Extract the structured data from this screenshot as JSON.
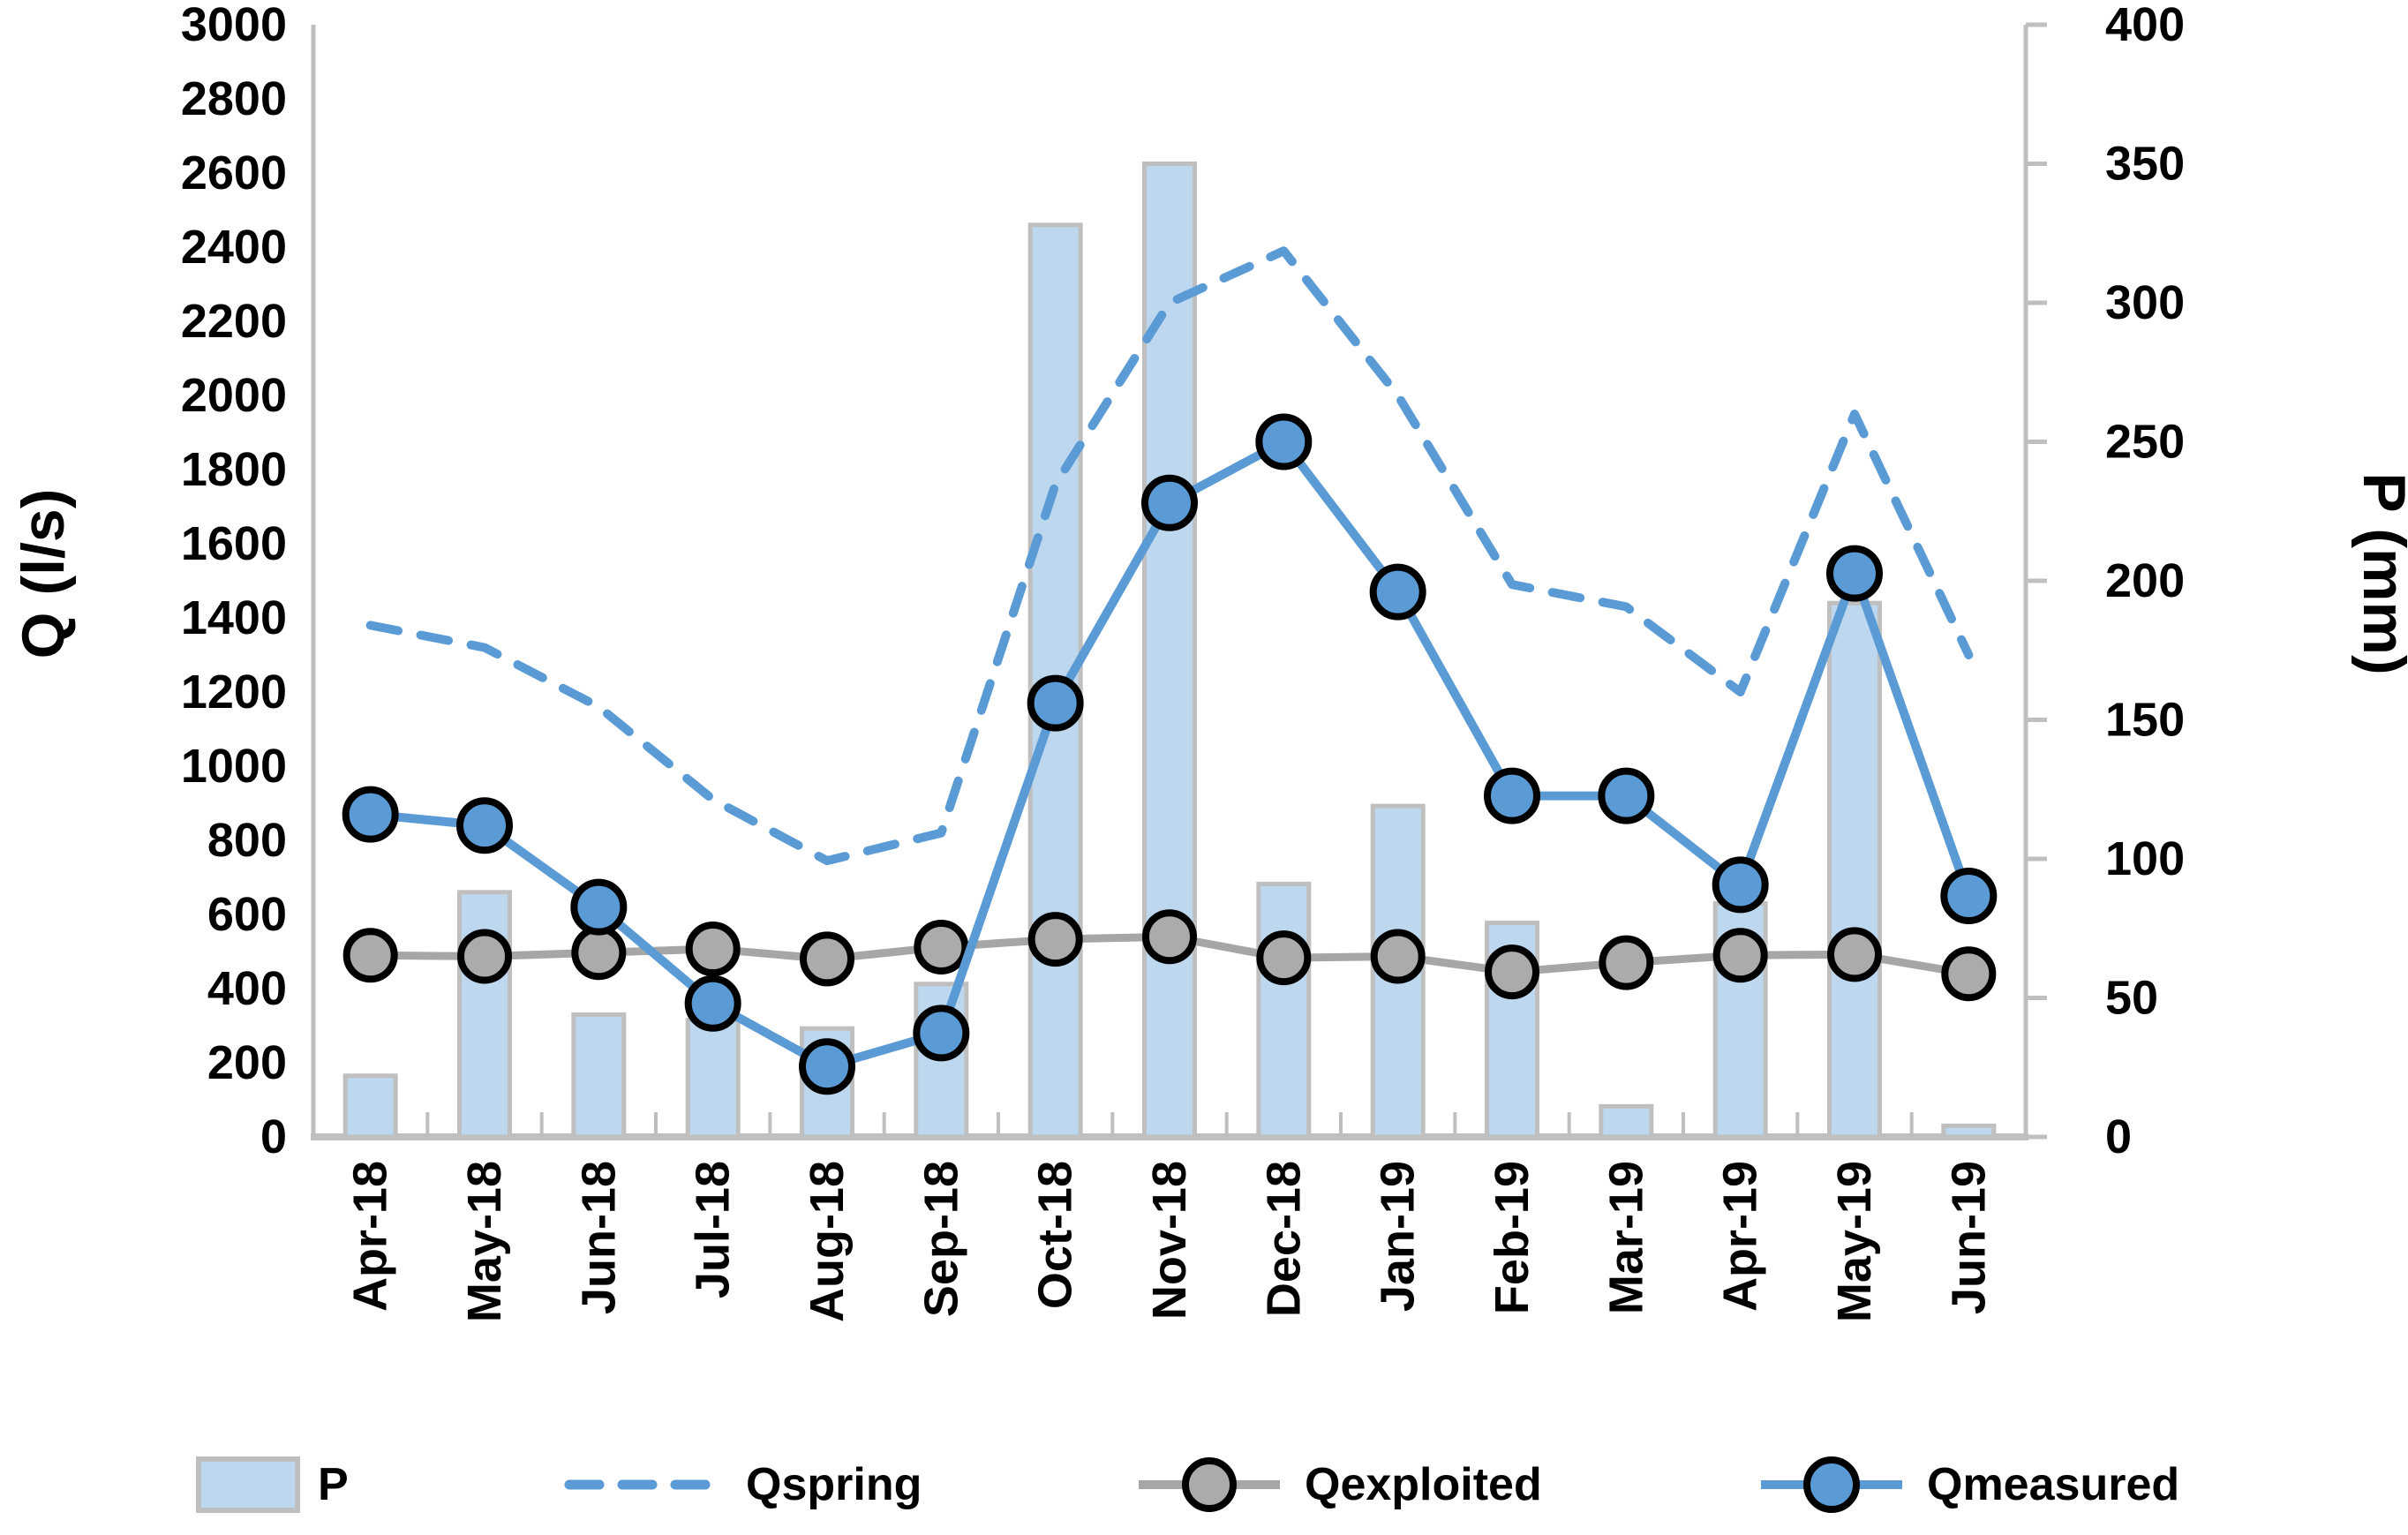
{
  "chart_data": {
    "type": "bar",
    "subtype": "combo-bar-and-lines",
    "title": "",
    "grid": false,
    "legend_position": "bottom",
    "categories": [
      "Apr-18",
      "May-18",
      "Jun-18",
      "Jul-18",
      "Aug-18",
      "Sep-18",
      "Oct-18",
      "Nov-18",
      "Dec-18",
      "Jan-19",
      "Feb-19",
      "Mar-19",
      "Apr-19",
      "May-19",
      "Jun-19"
    ],
    "left_axis": {
      "label": "Q (l/s)",
      "min": 0,
      "max": 3000,
      "step": 200,
      "ticks": [
        "0",
        "200",
        "400",
        "600",
        "800",
        "1000",
        "1200",
        "1400",
        "1600",
        "1800",
        "2000",
        "2200",
        "2400",
        "2600",
        "2800",
        "3000"
      ]
    },
    "right_axis": {
      "label": "P (mm)",
      "min": 0,
      "max": 400,
      "step": 50,
      "ticks": [
        "0",
        "50",
        "100",
        "150",
        "200",
        "250",
        "300",
        "350",
        "400"
      ]
    },
    "series": [
      {
        "name": "P",
        "kind": "bar",
        "axis": "right",
        "unit": "mm",
        "fill": "#BDD7EE",
        "stroke": "#BFBFBF",
        "values": [
          22,
          88,
          44,
          42,
          39,
          55,
          328,
          350,
          91,
          119,
          77,
          11,
          84,
          192,
          4
        ]
      },
      {
        "name": "Qspring",
        "kind": "dashed-line",
        "axis": "left",
        "unit": "l/s",
        "color": "#5B9BD5",
        "values": [
          1380,
          1320,
          1160,
          910,
          745,
          820,
          1760,
          2250,
          2390,
          2000,
          1490,
          1430,
          1200,
          1950,
          1300
        ]
      },
      {
        "name": "Qexploited",
        "kind": "line-with-markers",
        "axis": "left",
        "unit": "l/s",
        "color": "#A6A6A6",
        "marker_fill": "#ABABAB",
        "marker_stroke": "#000000",
        "values": [
          490,
          487,
          497,
          507,
          480,
          512,
          533,
          540,
          483,
          487,
          445,
          470,
          490,
          492,
          440
        ]
      },
      {
        "name": "Qmeasured",
        "kind": "line-with-markers",
        "axis": "left",
        "unit": "l/s",
        "color": "#5B9BD5",
        "marker_fill": "#5B9BD5",
        "marker_stroke": "#000000",
        "values": [
          870,
          840,
          620,
          360,
          190,
          280,
          1170,
          1710,
          1875,
          1470,
          920,
          920,
          680,
          1520,
          650
        ]
      }
    ],
    "legend": [
      "P",
      "Qspring",
      "Qexploited",
      "Qmeasured"
    ],
    "colors": {
      "accent_blue": "#5B9BD5",
      "bar_fill": "#BDD7EE",
      "axis_gray": "#BFBFBF",
      "line_gray": "#A6A6A6",
      "text": "#000000"
    }
  }
}
